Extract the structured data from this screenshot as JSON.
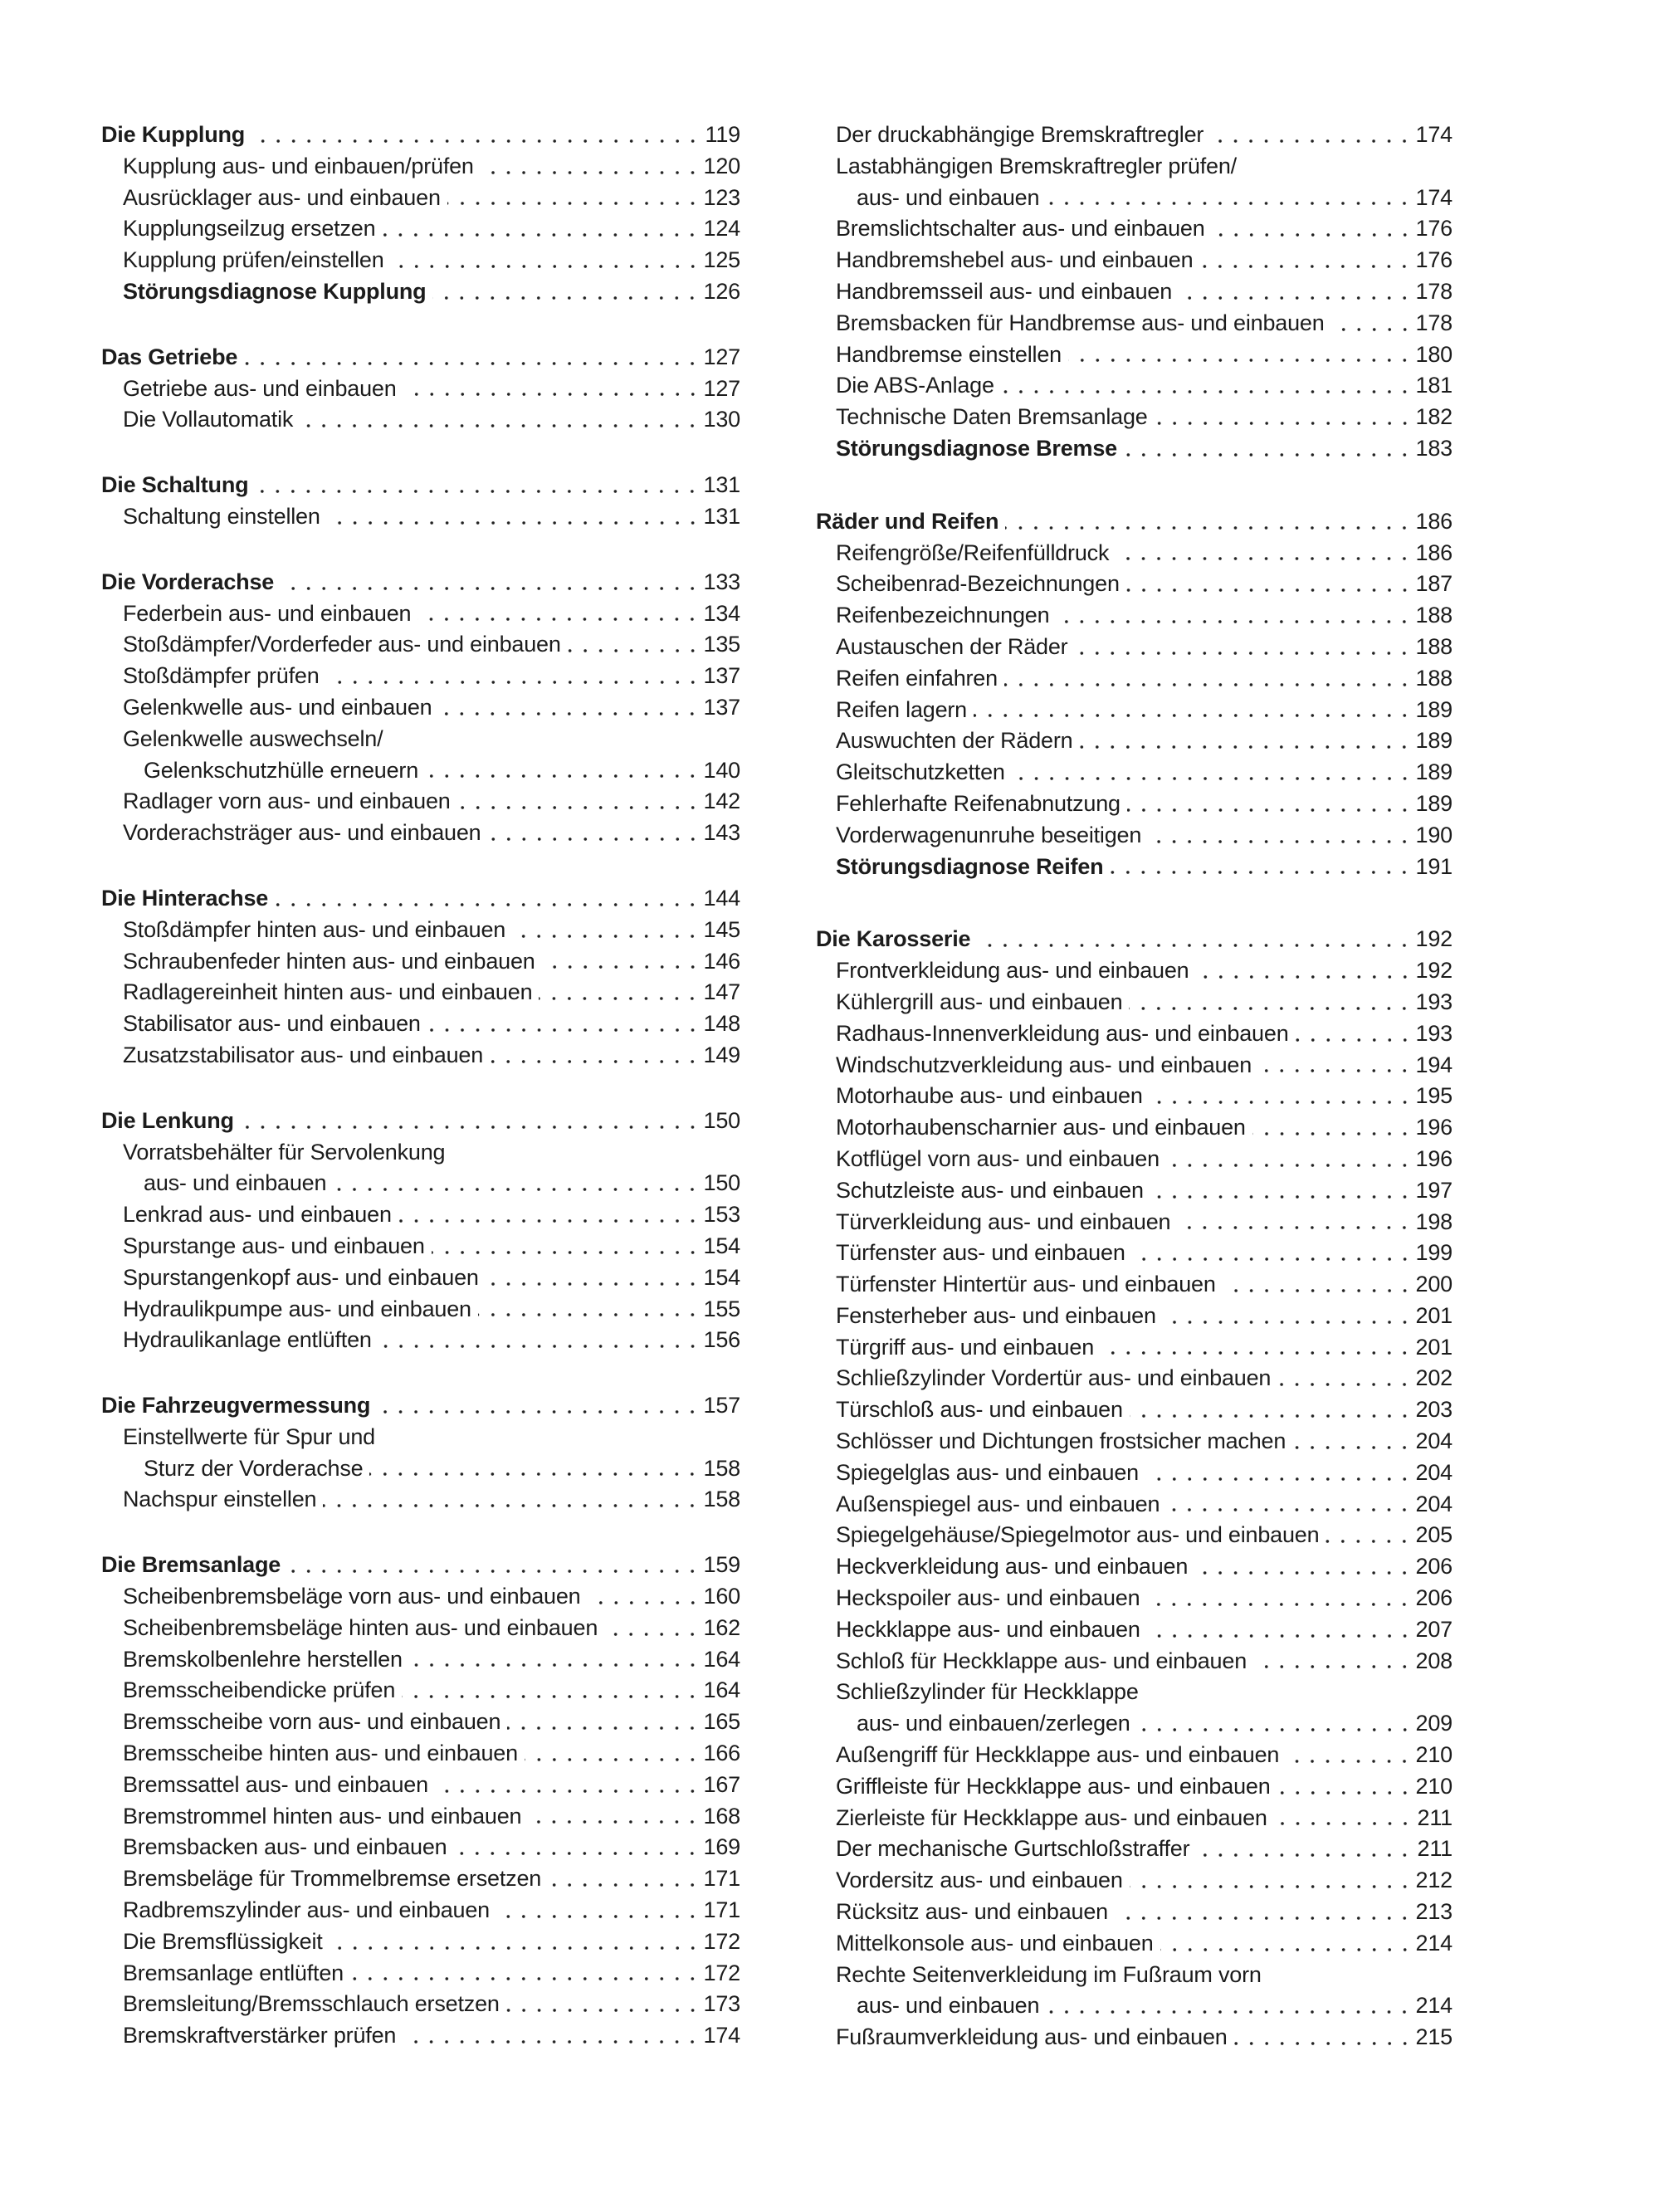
{
  "toc": {
    "left": [
      [
        [
          "Die Kupplung",
          "119",
          "h"
        ],
        [
          "Kupplung aus- und einbauen/prüfen",
          "120",
          "s"
        ],
        [
          "Ausrücklager aus- und einbauen",
          "123",
          "s"
        ],
        [
          "Kupplungseilzug ersetzen",
          "124",
          "s"
        ],
        [
          "Kupplung prüfen/einstellen",
          "125",
          "s"
        ],
        [
          "Störungsdiagnose Kupplung",
          "126",
          "b"
        ]
      ],
      [
        [
          "Das Getriebe",
          "127",
          "h"
        ],
        [
          "Getriebe aus- und einbauen",
          "127",
          "s"
        ],
        [
          "Die Vollautomatik",
          "130",
          "s"
        ]
      ],
      [
        [
          "Die Schaltung",
          "131",
          "h"
        ],
        [
          "Schaltung einstellen",
          "131",
          "s"
        ]
      ],
      [
        [
          "Die Vorderachse",
          "133",
          "h"
        ],
        [
          "Federbein aus- und einbauen",
          "134",
          "s"
        ],
        [
          "Stoßdämpfer/Vorderfeder aus- und einbauen",
          "135",
          "s"
        ],
        [
          "Stoßdämpfer prüfen",
          "137",
          "s"
        ],
        [
          "Gelenkwelle aus- und einbauen",
          "137",
          "s"
        ],
        [
          "Gelenkwelle auswechseln/",
          "",
          "s"
        ],
        [
          "Gelenkschutzhülle erneuern",
          "140",
          "c"
        ],
        [
          "Radlager vorn aus- und einbauen",
          "142",
          "s"
        ],
        [
          "Vorderachsträger aus- und einbauen",
          "143",
          "s"
        ]
      ],
      [
        [
          "Die Hinterachse",
          "144",
          "h"
        ],
        [
          "Stoßdämpfer hinten aus- und einbauen",
          "145",
          "s"
        ],
        [
          "Schraubenfeder hinten aus- und einbauen",
          "146",
          "s"
        ],
        [
          "Radlagereinheit hinten aus- und einbauen",
          "147",
          "s"
        ],
        [
          "Stabilisator aus- und einbauen",
          "148",
          "s"
        ],
        [
          "Zusatzstabilisator aus- und einbauen",
          "149",
          "s"
        ]
      ],
      [
        [
          "Die Lenkung",
          "150",
          "h"
        ],
        [
          "Vorratsbehälter für Servolenkung",
          "",
          "s"
        ],
        [
          "aus- und einbauen",
          "150",
          "c"
        ],
        [
          "Lenkrad aus- und einbauen",
          "153",
          "s"
        ],
        [
          "Spurstange aus- und einbauen",
          "154",
          "s"
        ],
        [
          "Spurstangenkopf aus- und einbauen",
          "154",
          "s"
        ],
        [
          "Hydraulikpumpe aus- und einbauen",
          "155",
          "s"
        ],
        [
          "Hydraulikanlage entlüften",
          "156",
          "s"
        ]
      ],
      [
        [
          "Die Fahrzeugvermessung",
          "157",
          "h"
        ],
        [
          "Einstellwerte für Spur und",
          "",
          "s"
        ],
        [
          "Sturz der Vorderachse",
          "158",
          "c"
        ],
        [
          "Nachspur einstellen",
          "158",
          "s"
        ]
      ],
      [
        [
          "Die Bremsanlage",
          "159",
          "h"
        ],
        [
          "Scheibenbremsbeläge vorn aus- und einbauen",
          "160",
          "s"
        ],
        [
          "Scheibenbremsbeläge hinten aus- und einbauen",
          "162",
          "s"
        ],
        [
          "Bremskolbenlehre herstellen",
          "164",
          "s"
        ],
        [
          "Bremsscheibendicke prüfen",
          "164",
          "s"
        ],
        [
          "Bremsscheibe vorn aus- und einbauen",
          "165",
          "s"
        ],
        [
          "Bremsscheibe hinten aus- und einbauen",
          "166",
          "s"
        ],
        [
          "Bremssattel aus- und einbauen",
          "167",
          "s"
        ],
        [
          "Bremstrommel hinten aus- und einbauen",
          "168",
          "s"
        ],
        [
          "Bremsbacken aus- und einbauen",
          "169",
          "s"
        ],
        [
          "Bremsbeläge für Trommelbremse ersetzen",
          "171",
          "s"
        ],
        [
          "Radbremszylinder aus- und einbauen",
          "171",
          "s"
        ],
        [
          "Die Bremsflüssigkeit",
          "172",
          "s"
        ],
        [
          "Bremsanlage entlüften",
          "172",
          "s"
        ],
        [
          "Bremsleitung/Bremsschlauch ersetzen",
          "173",
          "s"
        ],
        [
          "Bremskraftverstärker prüfen",
          "174",
          "s"
        ]
      ]
    ],
    "right": [
      [
        [
          "Der druckabhängige Bremskraftregler",
          "174",
          "s"
        ],
        [
          "Lastabhängigen Bremskraftregler prüfen/",
          "",
          "s"
        ],
        [
          "aus- und einbauen",
          "174",
          "c"
        ],
        [
          "Bremslichtschalter aus- und einbauen",
          "176",
          "s"
        ],
        [
          "Handbremshebel aus- und einbauen",
          "176",
          "s"
        ],
        [
          "Handbremsseil aus- und einbauen",
          "178",
          "s"
        ],
        [
          "Bremsbacken für Handbremse aus- und einbauen",
          "178",
          "s"
        ],
        [
          "Handbremse einstellen",
          "180",
          "s"
        ],
        [
          "Die ABS-Anlage",
          "181",
          "s"
        ],
        [
          "Technische Daten Bremsanlage",
          "182",
          "s"
        ],
        [
          "Störungsdiagnose Bremse",
          "183",
          "b"
        ]
      ],
      [
        [
          "Räder und Reifen",
          "186",
          "h"
        ],
        [
          "Reifengröße/Reifenfülldruck",
          "186",
          "s"
        ],
        [
          "Scheibenrad-Bezeichnungen",
          "187",
          "s"
        ],
        [
          "Reifenbezeichnungen",
          "188",
          "s"
        ],
        [
          "Austauschen der Räder",
          "188",
          "s"
        ],
        [
          "Reifen einfahren",
          "188",
          "s"
        ],
        [
          "Reifen lagern",
          "189",
          "s"
        ],
        [
          "Auswuchten der Rädern",
          "189",
          "s"
        ],
        [
          "Gleitschutzketten",
          "189",
          "s"
        ],
        [
          "Fehlerhafte Reifenabnutzung",
          "189",
          "s"
        ],
        [
          "Vorderwagenunruhe beseitigen",
          "190",
          "s"
        ],
        [
          "Störungsdiagnose Reifen",
          "191",
          "b"
        ]
      ],
      [
        [
          "Die Karosserie",
          "192",
          "h"
        ],
        [
          "Frontverkleidung aus- und einbauen",
          "192",
          "s"
        ],
        [
          "Kühlergrill aus- und einbauen",
          "193",
          "s"
        ],
        [
          "Radhaus-Innenverkleidung aus- und einbauen",
          "193",
          "s"
        ],
        [
          "Windschutzverkleidung aus- und einbauen",
          "194",
          "s"
        ],
        [
          "Motorhaube aus- und einbauen",
          "195",
          "s"
        ],
        [
          "Motorhaubenscharnier aus- und einbauen",
          "196",
          "s"
        ],
        [
          "Kotflügel vorn aus- und einbauen",
          "196",
          "s"
        ],
        [
          "Schutzleiste aus- und einbauen",
          "197",
          "s"
        ],
        [
          "Türverkleidung aus- und einbauen",
          "198",
          "s"
        ],
        [
          "Türfenster aus- und einbauen",
          "199",
          "s"
        ],
        [
          "Türfenster Hintertür aus- und einbauen",
          "200",
          "s"
        ],
        [
          "Fensterheber aus- und einbauen",
          "201",
          "s"
        ],
        [
          "Türgriff aus- und einbauen",
          "201",
          "s"
        ],
        [
          "Schließzylinder Vordertür aus- und einbauen",
          "202",
          "s"
        ],
        [
          "Türschloß aus- und einbauen",
          "203",
          "s"
        ],
        [
          "Schlösser und Dichtungen frostsicher machen",
          "204",
          "s"
        ],
        [
          "Spiegelglas aus- und einbauen",
          "204",
          "s"
        ],
        [
          "Außenspiegel aus- und einbauen",
          "204",
          "s"
        ],
        [
          "Spiegelgehäuse/Spiegelmotor aus- und einbauen",
          "205",
          "s"
        ],
        [
          "Heckverkleidung aus- und einbauen",
          "206",
          "s"
        ],
        [
          "Heckspoiler aus- und einbauen",
          "206",
          "s"
        ],
        [
          "Heckklappe aus- und einbauen",
          "207",
          "s"
        ],
        [
          "Schloß für Heckklappe aus- und einbauen",
          "208",
          "s"
        ],
        [
          "Schließzylinder für Heckklappe",
          "",
          "s"
        ],
        [
          "aus- und einbauen/zerlegen",
          "209",
          "c"
        ],
        [
          "Außengriff für Heckklappe aus- und einbauen",
          "210",
          "s"
        ],
        [
          "Griffleiste für Heckklappe aus- und einbauen",
          "210",
          "s"
        ],
        [
          "Zierleiste für Heckklappe aus- und einbauen",
          "211",
          "s"
        ],
        [
          "Der mechanische Gurtschloßstraffer",
          "211",
          "s"
        ],
        [
          "Vordersitz aus- und einbauen",
          "212",
          "s"
        ],
        [
          "Rücksitz aus- und einbauen",
          "213",
          "s"
        ],
        [
          "Mittelkonsole aus- und einbauen",
          "214",
          "s"
        ],
        [
          "Rechte Seitenverkleidung im Fußraum vorn",
          "",
          "s"
        ],
        [
          "aus- und einbauen",
          "214",
          "c"
        ],
        [
          "Fußraumverkleidung aus- und einbauen",
          "215",
          "s"
        ]
      ]
    ]
  }
}
